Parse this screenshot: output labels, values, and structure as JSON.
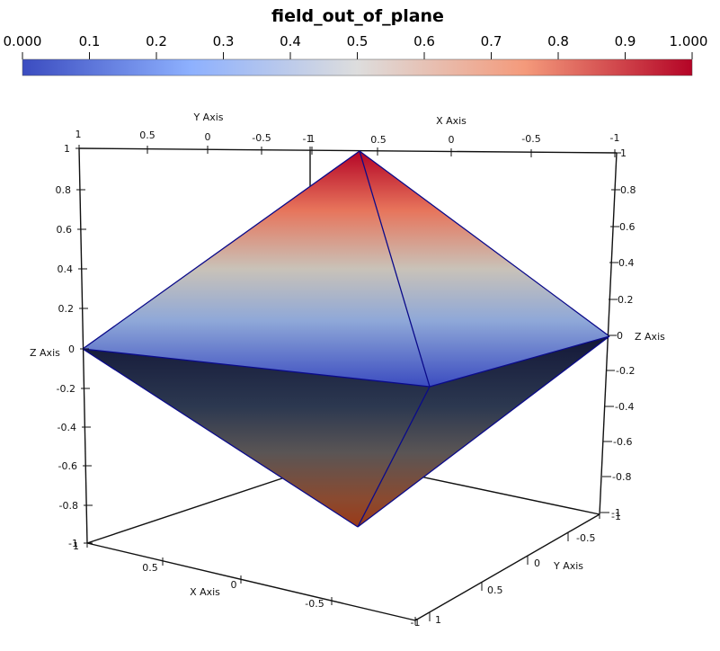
{
  "colorbar": {
    "title": "field_out_of_plane",
    "tick_labels": [
      "0.000",
      "0.1",
      "0.2",
      "0.3",
      "0.4",
      "0.5",
      "0.6",
      "0.7",
      "0.8",
      "0.9",
      "1.000"
    ],
    "colormap": "cool to warm",
    "low_color": "#3b4cc0",
    "mid_color": "#dddddd",
    "high_color": "#b40426"
  },
  "axes": {
    "z_axis": {
      "title": "Z Axis",
      "left_ticks": [
        "1",
        "0.8",
        "0.6",
        "0.4",
        "0.2",
        "0",
        "-0.2",
        "-0.4",
        "-0.6",
        "-0.8",
        "-1"
      ],
      "right_ticks": [
        "1",
        "0.8",
        "0.6",
        "0.4",
        "0.2",
        "0",
        "-0.2",
        "-0.4",
        "-0.6",
        "-0.8",
        "-1"
      ]
    },
    "x_axis_top": {
      "title": "X Axis",
      "ticks": [
        "1",
        "0.5",
        "0",
        "-0.5",
        "-1"
      ]
    },
    "y_axis_top": {
      "title": "Y Axis",
      "ticks": [
        "1",
        "0.5",
        "0",
        "-0.5",
        "-1"
      ]
    },
    "x_axis_bottom": {
      "title": "X Axis",
      "ticks": [
        "1",
        "0.5",
        "0",
        "-0.5",
        "-1"
      ]
    },
    "y_axis_bottom": {
      "title": "Y Axis",
      "ticks": [
        "-1",
        "-0.5",
        "0",
        "0.5",
        "1"
      ]
    }
  },
  "shape": {
    "type": "octahedron",
    "edge_color": "#0a0a8a"
  }
}
